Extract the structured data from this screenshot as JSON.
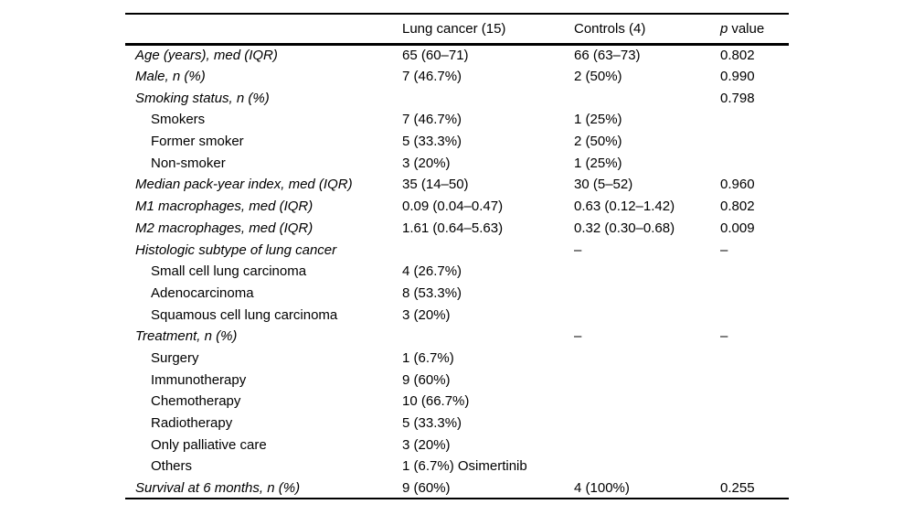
{
  "colors": {
    "text": "#000000",
    "background": "#ffffff",
    "rule": "#000000"
  },
  "table": {
    "columns": {
      "label": "",
      "lung": "Lung cancer (15)",
      "controls": "Controls (4)",
      "p_prefix": "p",
      "p_suffix": "value"
    },
    "rows": [
      {
        "label": "Age (years), med (IQR)",
        "indent": false,
        "lung": "65 (60–71)",
        "controls": "66 (63–73)",
        "p": "0.802"
      },
      {
        "label": "Male, n (%)",
        "indent": false,
        "lung": "7 (46.7%)",
        "controls": "2 (50%)",
        "p": "0.990"
      },
      {
        "label": "Smoking status, n (%)",
        "indent": false,
        "lung": "",
        "controls": "",
        "p": "0.798"
      },
      {
        "label": "Smokers",
        "indent": true,
        "lung": "7 (46.7%)",
        "controls": "1 (25%)",
        "p": ""
      },
      {
        "label": "Former smoker",
        "indent": true,
        "lung": "5 (33.3%)",
        "controls": "2 (50%)",
        "p": ""
      },
      {
        "label": "Non-smoker",
        "indent": true,
        "lung": "3 (20%)",
        "controls": "1 (25%)",
        "p": ""
      },
      {
        "label": "Median pack-year index, med (IQR)",
        "indent": false,
        "lung": "35 (14–50)",
        "controls": "30 (5–52)",
        "p": "0.960"
      },
      {
        "label": "M1 macrophages, med (IQR)",
        "indent": false,
        "lung": "0.09 (0.04–0.47)",
        "controls": "0.63 (0.12–1.42)",
        "p": "0.802"
      },
      {
        "label": "M2 macrophages, med (IQR)",
        "indent": false,
        "lung": "1.61 (0.64–5.63)",
        "controls": "0.32 (0.30–0.68)",
        "p": "0.009"
      },
      {
        "label": "Histologic subtype of lung cancer",
        "indent": false,
        "lung": "",
        "controls": "–",
        "p": "–"
      },
      {
        "label": "Small cell lung carcinoma",
        "indent": true,
        "lung": "4 (26.7%)",
        "controls": "",
        "p": ""
      },
      {
        "label": "Adenocarcinoma",
        "indent": true,
        "lung": "8 (53.3%)",
        "controls": "",
        "p": ""
      },
      {
        "label": "Squamous cell lung carcinoma",
        "indent": true,
        "lung": "3 (20%)",
        "controls": "",
        "p": ""
      },
      {
        "label": "Treatment, n (%)",
        "indent": false,
        "lung": "",
        "controls": "–",
        "p": "–"
      },
      {
        "label": "Surgery",
        "indent": true,
        "lung": "1 (6.7%)",
        "controls": "",
        "p": ""
      },
      {
        "label": "Immunotherapy",
        "indent": true,
        "lung": "9 (60%)",
        "controls": "",
        "p": ""
      },
      {
        "label": "Chemotherapy",
        "indent": true,
        "lung": "10 (66.7%)",
        "controls": "",
        "p": ""
      },
      {
        "label": "Radiotherapy",
        "indent": true,
        "lung": "5 (33.3%)",
        "controls": "",
        "p": ""
      },
      {
        "label": "Only palliative care",
        "indent": true,
        "lung": "3 (20%)",
        "controls": "",
        "p": ""
      },
      {
        "label": "Others",
        "indent": true,
        "lung": "1 (6.7%) Osimertinib",
        "controls": "",
        "p": ""
      },
      {
        "label": "Survival at 6 months, n (%)",
        "indent": false,
        "lung": "9 (60%)",
        "controls": "4 (100%)",
        "p": "0.255"
      }
    ]
  }
}
